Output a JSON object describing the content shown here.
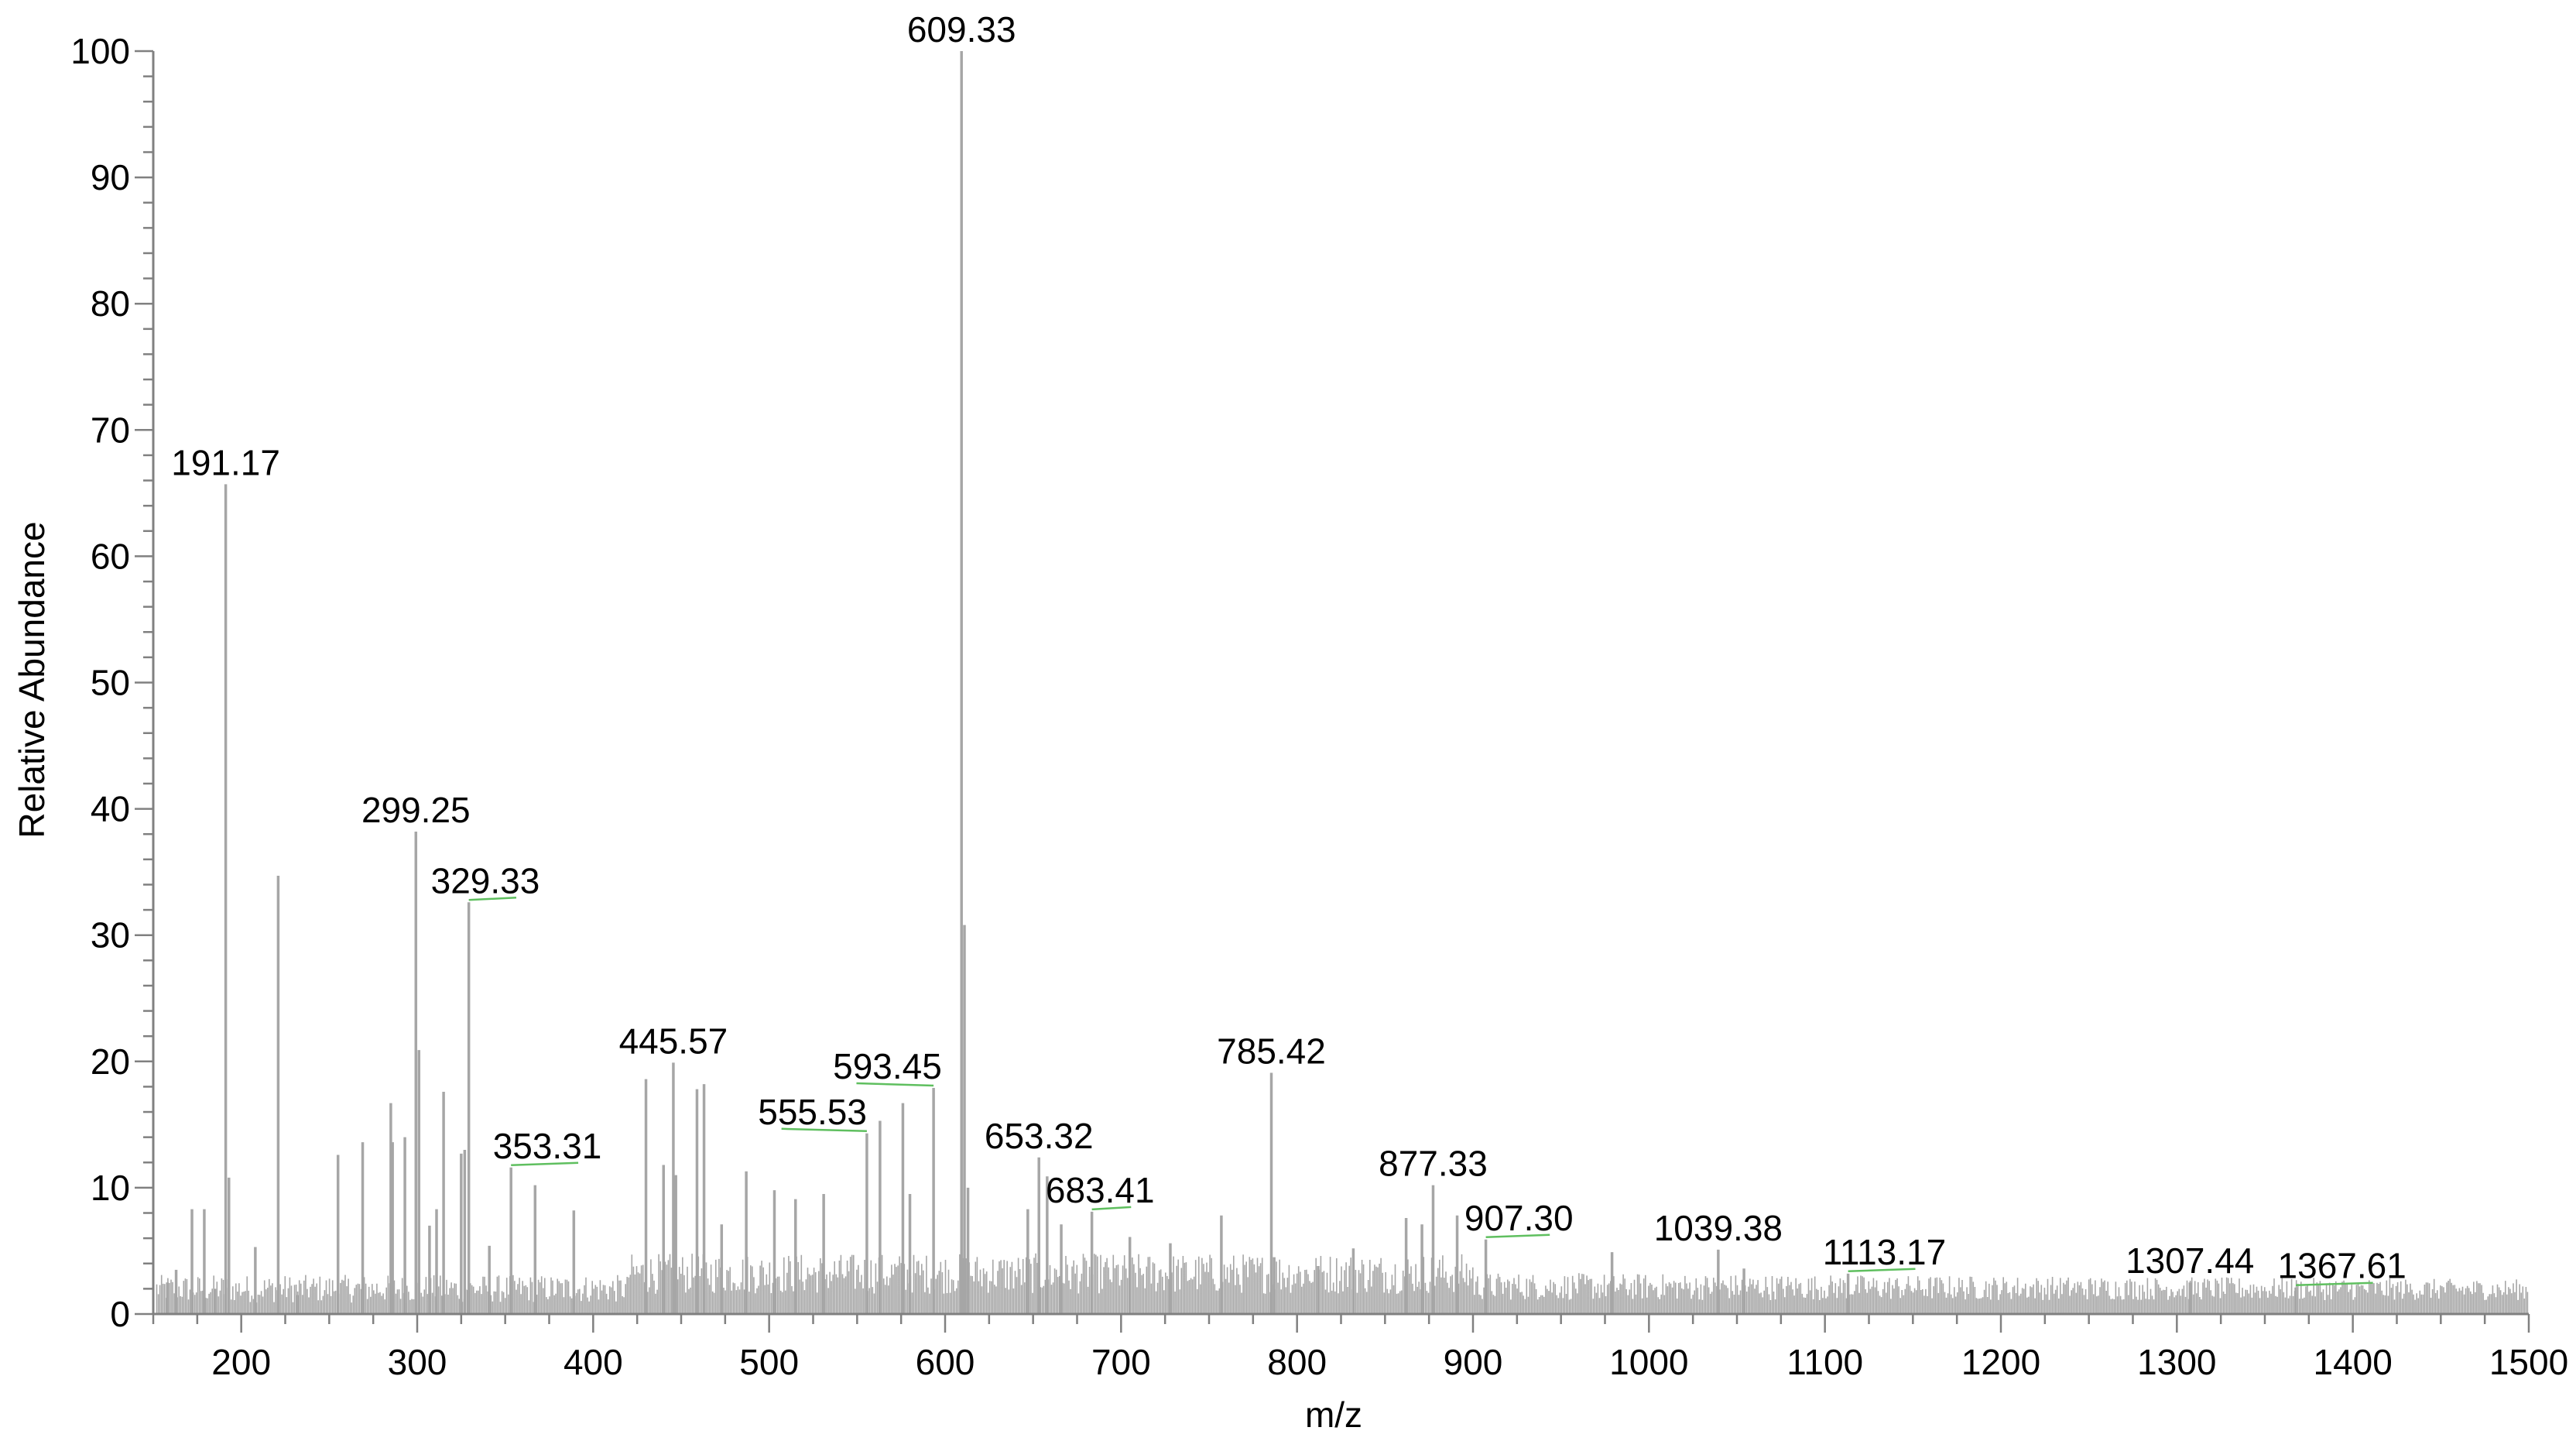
{
  "chart_data": {
    "type": "bar",
    "title": "",
    "xlabel": "m/z",
    "ylabel": "Relative Abundance",
    "xlim": [
      150,
      1500
    ],
    "ylim": [
      0,
      100
    ],
    "grid": false,
    "x_ticks": [
      "200",
      "300",
      "400",
      "500",
      "600",
      "700",
      "800",
      "900",
      "1000",
      "1100",
      "1200",
      "1300",
      "1400",
      "1500"
    ],
    "y_ticks": [
      "0",
      "10",
      "20",
      "30",
      "40",
      "50",
      "60",
      "70",
      "80",
      "90",
      "100"
    ],
    "bar_color": "#a6a6a6",
    "leader_color": "#5fbf5f",
    "peaks": [
      {
        "x": 191.17,
        "y": 65.7
      },
      {
        "x": 221,
        "y": 34.7
      },
      {
        "x": 299.25,
        "y": 38.2
      },
      {
        "x": 329.33,
        "y": 32.6
      },
      {
        "x": 353.31,
        "y": 11.6
      },
      {
        "x": 445.57,
        "y": 19.9
      },
      {
        "x": 555.53,
        "y": 14.3
      },
      {
        "x": 593.45,
        "y": 17.9
      },
      {
        "x": 609.33,
        "y": 100
      },
      {
        "x": 611,
        "y": 30.8
      },
      {
        "x": 653.32,
        "y": 12.4
      },
      {
        "x": 683.41,
        "y": 8.1
      },
      {
        "x": 785.42,
        "y": 19.1
      },
      {
        "x": 877.33,
        "y": 10.2
      },
      {
        "x": 907.3,
        "y": 5.9
      },
      {
        "x": 1039.38,
        "y": 5.1
      },
      {
        "x": 1113.17,
        "y": 3.2
      },
      {
        "x": 1307.44,
        "y": 2.5
      },
      {
        "x": 1367.61,
        "y": 2.1
      }
    ],
    "minor_peaks": [
      {
        "x": 158,
        "y": 2.5
      },
      {
        "x": 163,
        "y": 3.5
      },
      {
        "x": 172,
        "y": 8.3
      },
      {
        "x": 179,
        "y": 8.3
      },
      {
        "x": 185,
        "y": 2.0
      },
      {
        "x": 193,
        "y": 10.8
      },
      {
        "x": 208,
        "y": 5.3
      },
      {
        "x": 232,
        "y": 1.5
      },
      {
        "x": 255,
        "y": 12.6
      },
      {
        "x": 269,
        "y": 13.6
      },
      {
        "x": 285,
        "y": 16.7
      },
      {
        "x": 286,
        "y": 13.6
      },
      {
        "x": 293,
        "y": 14.0
      },
      {
        "x": 301,
        "y": 20.9
      },
      {
        "x": 307,
        "y": 7.0
      },
      {
        "x": 311,
        "y": 8.3
      },
      {
        "x": 315,
        "y": 17.6
      },
      {
        "x": 325,
        "y": 12.7
      },
      {
        "x": 327,
        "y": 13.0
      },
      {
        "x": 341,
        "y": 5.4
      },
      {
        "x": 367,
        "y": 10.2
      },
      {
        "x": 389,
        "y": 8.2
      },
      {
        "x": 430,
        "y": 18.6
      },
      {
        "x": 440,
        "y": 11.8
      },
      {
        "x": 447,
        "y": 11.0
      },
      {
        "x": 459,
        "y": 17.8
      },
      {
        "x": 463,
        "y": 18.2
      },
      {
        "x": 473,
        "y": 7.1
      },
      {
        "x": 487,
        "y": 11.3
      },
      {
        "x": 503,
        "y": 9.8
      },
      {
        "x": 515,
        "y": 9.1
      },
      {
        "x": 531,
        "y": 9.5
      },
      {
        "x": 563,
        "y": 15.3
      },
      {
        "x": 576,
        "y": 16.7
      },
      {
        "x": 580,
        "y": 9.5
      },
      {
        "x": 613,
        "y": 10.0
      },
      {
        "x": 647,
        "y": 8.3
      },
      {
        "x": 658,
        "y": 10.9
      },
      {
        "x": 666,
        "y": 7.1
      },
      {
        "x": 705,
        "y": 6.1
      },
      {
        "x": 728,
        "y": 5.6
      },
      {
        "x": 757,
        "y": 7.8
      },
      {
        "x": 787,
        "y": 4.5
      },
      {
        "x": 812,
        "y": 3.8
      },
      {
        "x": 832,
        "y": 5.2
      },
      {
        "x": 862,
        "y": 7.6
      },
      {
        "x": 871,
        "y": 7.1
      },
      {
        "x": 891,
        "y": 7.8
      },
      {
        "x": 979,
        "y": 4.9
      },
      {
        "x": 1054,
        "y": 3.6
      }
    ],
    "labeled_peaks": [
      {
        "label": "191.17",
        "x": 191.17,
        "y": 65.7,
        "dx": 0
      },
      {
        "label": "299.25",
        "x": 299.25,
        "y": 38.2,
        "dx": 0
      },
      {
        "label": "329.33",
        "x": 329.33,
        "y": 32.6,
        "dx": 10
      },
      {
        "label": "353.31",
        "x": 353.31,
        "y": 11.6,
        "dx": 22
      },
      {
        "label": "445.57",
        "x": 445.57,
        "y": 19.9,
        "dx": 0
      },
      {
        "label": "555.53",
        "x": 555.53,
        "y": 14.3,
        "dx": -33
      },
      {
        "label": "593.45",
        "x": 593.45,
        "y": 17.9,
        "dx": -28
      },
      {
        "label": "609.33",
        "x": 609.33,
        "y": 100,
        "dx": 0
      },
      {
        "label": "653.32",
        "x": 653.32,
        "y": 12.4,
        "dx": 0
      },
      {
        "label": "683.41",
        "x": 683.41,
        "y": 8.1,
        "dx": 5
      },
      {
        "label": "785.42",
        "x": 785.42,
        "y": 19.1,
        "dx": 0
      },
      {
        "label": "877.33",
        "x": 877.33,
        "y": 10.2,
        "dx": 0
      },
      {
        "label": "907.30",
        "x": 907.3,
        "y": 5.9,
        "dx": 20
      },
      {
        "label": "1039.38",
        "x": 1039.38,
        "y": 5.1,
        "dx": 0
      },
      {
        "label": "1113.17",
        "x": 1113.17,
        "y": 3.2,
        "dx": 22
      },
      {
        "label": "1307.44",
        "x": 1307.44,
        "y": 2.5,
        "dx": 0
      },
      {
        "label": "1367.61",
        "x": 1367.61,
        "y": 2.1,
        "dx": 28
      }
    ]
  }
}
